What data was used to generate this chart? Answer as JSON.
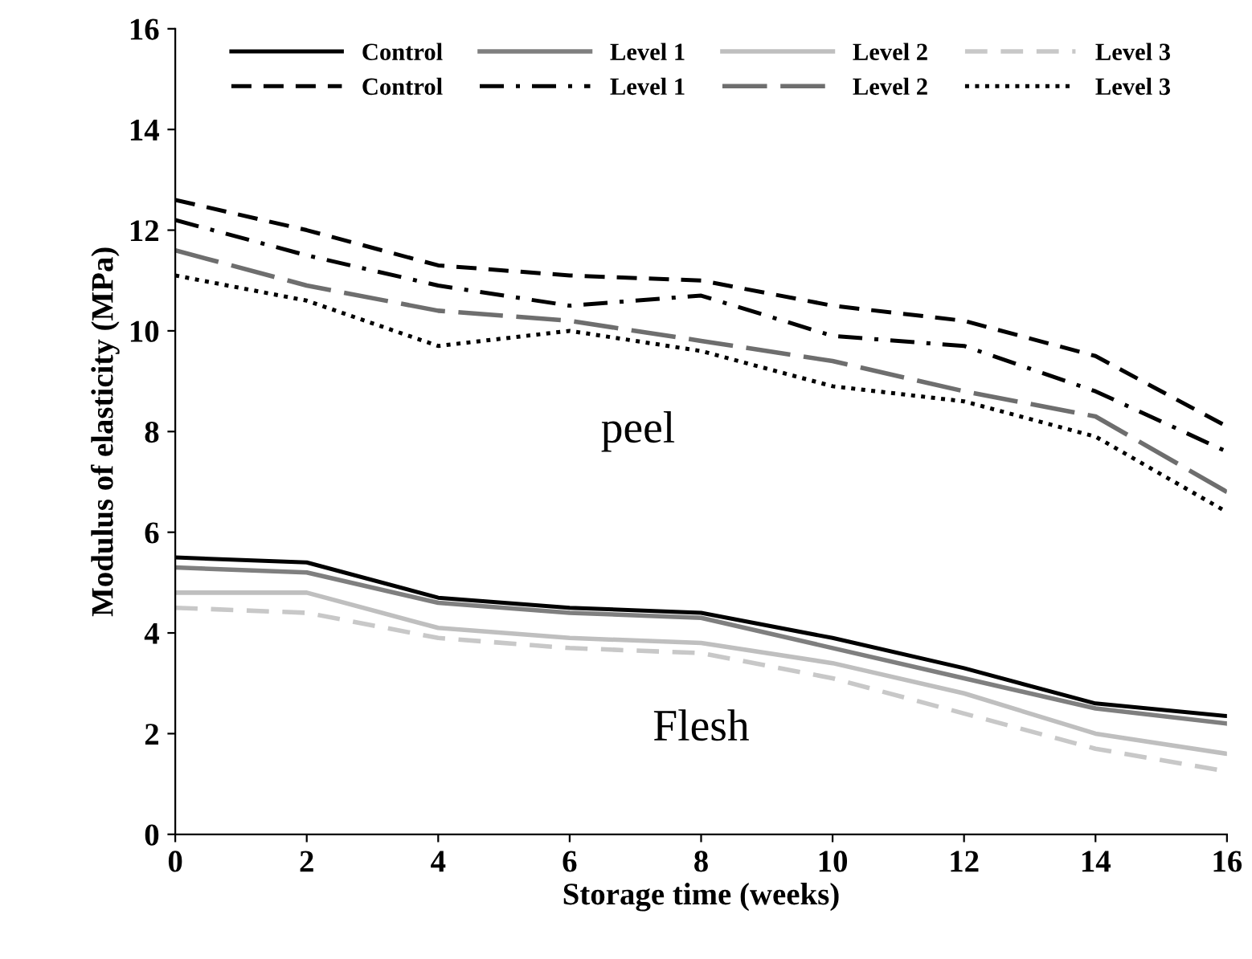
{
  "chart_data": {
    "type": "line",
    "xlabel": "Storage time (weeks)",
    "ylabel": "Modulus of elasticity (MPa)",
    "x": [
      0,
      2,
      4,
      6,
      8,
      10,
      12,
      14,
      16
    ],
    "xlim": [
      0,
      16
    ],
    "xticks": [
      0,
      2,
      4,
      6,
      8,
      10,
      12,
      14,
      16
    ],
    "ylim": [
      0,
      16
    ],
    "yticks": [
      0,
      2,
      4,
      6,
      8,
      10,
      12,
      14,
      16
    ],
    "grid": false,
    "legend": "top",
    "marker": "none",
    "series": [
      {
        "name": "Control",
        "color": "#000000",
        "line_style": "solid",
        "values": [
          5.5,
          5.4,
          4.7,
          4.5,
          4.4,
          3.9,
          3.3,
          2.6,
          2.35
        ]
      },
      {
        "name": "Level 1",
        "color": "#7f7f7f",
        "line_style": "solid",
        "values": [
          5.3,
          5.2,
          4.6,
          4.4,
          4.3,
          3.7,
          3.1,
          2.5,
          2.2
        ]
      },
      {
        "name": "Level 2",
        "color": "#bfbfbf",
        "line_style": "solid",
        "values": [
          4.8,
          4.8,
          4.1,
          3.9,
          3.8,
          3.4,
          2.8,
          2.0,
          1.6
        ]
      },
      {
        "name": "Level 3",
        "color": "#c8c8c8",
        "line_style": "dashed",
        "values": [
          4.5,
          4.4,
          3.9,
          3.7,
          3.6,
          3.1,
          2.4,
          1.7,
          1.25
        ]
      },
      {
        "name": "Control",
        "color": "#000000",
        "line_style": "dashed",
        "values": [
          12.6,
          12.0,
          11.3,
          11.1,
          11.0,
          10.5,
          10.2,
          9.5,
          8.1
        ]
      },
      {
        "name": "Level 1",
        "color": "#000000",
        "line_style": "dashdot",
        "values": [
          12.2,
          11.5,
          10.9,
          10.5,
          10.7,
          9.9,
          9.7,
          8.8,
          7.6
        ]
      },
      {
        "name": "Level 2",
        "color": "#6e6e6e",
        "line_style": "longdash",
        "values": [
          11.6,
          10.9,
          10.4,
          10.2,
          9.8,
          9.4,
          8.8,
          8.3,
          6.8
        ]
      },
      {
        "name": "Level 3",
        "color": "#000000",
        "line_style": "dotted",
        "values": [
          11.1,
          10.6,
          9.7,
          10.0,
          9.6,
          8.9,
          8.6,
          7.9,
          6.4
        ]
      }
    ],
    "annotations": [
      "peel",
      "Flesh"
    ]
  }
}
